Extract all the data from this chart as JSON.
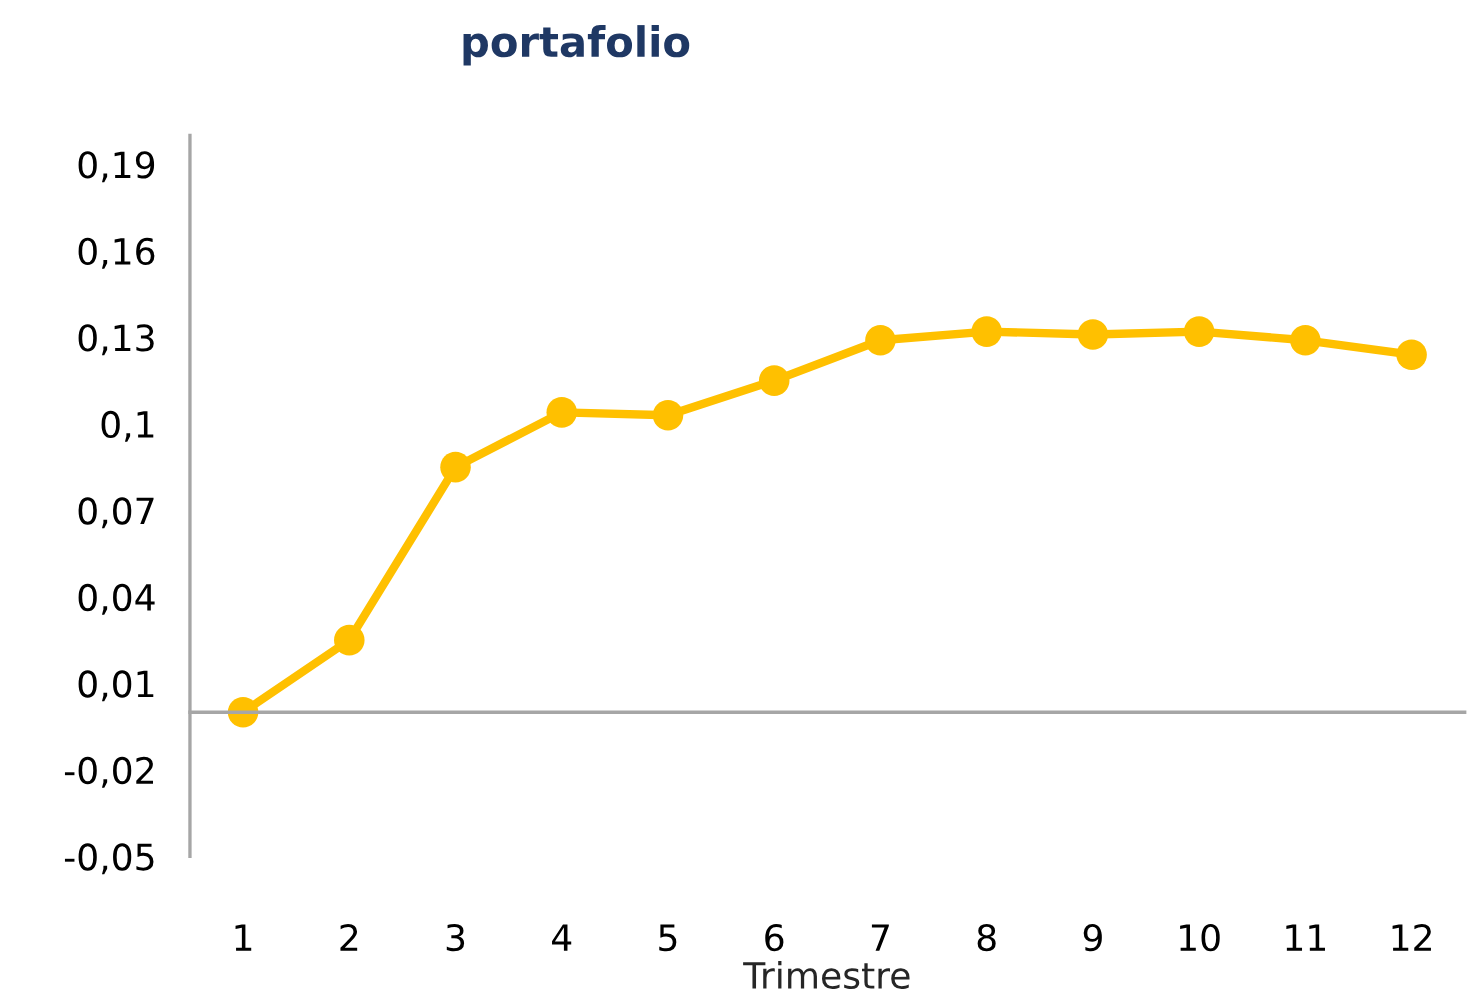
{
  "chart_data": {
    "type": "line",
    "title": "portafolio",
    "xlabel": "Trimestre",
    "categories": [
      "1",
      "2",
      "3",
      "4",
      "5",
      "6",
      "7",
      "8",
      "9",
      "10",
      "11",
      "12"
    ],
    "series": [
      {
        "color": "#ffc000",
        "values": [
          0.0,
          0.025,
          0.085,
          0.104,
          0.103,
          0.115,
          0.129,
          0.132,
          0.131,
          0.132,
          0.129,
          0.124
        ]
      }
    ],
    "ylim": [
      -0.05,
      0.2
    ],
    "yticks": [
      {
        "value": 0.19,
        "label": "0,19"
      },
      {
        "value": 0.16,
        "label": "0,16"
      },
      {
        "value": 0.13,
        "label": "0,13"
      },
      {
        "value": 0.1,
        "label": "0,1"
      },
      {
        "value": 0.07,
        "label": "0,07"
      },
      {
        "value": 0.04,
        "label": "0,04"
      },
      {
        "value": 0.01,
        "label": "0,01"
      },
      {
        "value": -0.02,
        "label": "-0,02"
      },
      {
        "value": -0.05,
        "label": "-0,05"
      }
    ],
    "grid": false,
    "legend": false,
    "marker": "circle",
    "line_style": "solid"
  }
}
